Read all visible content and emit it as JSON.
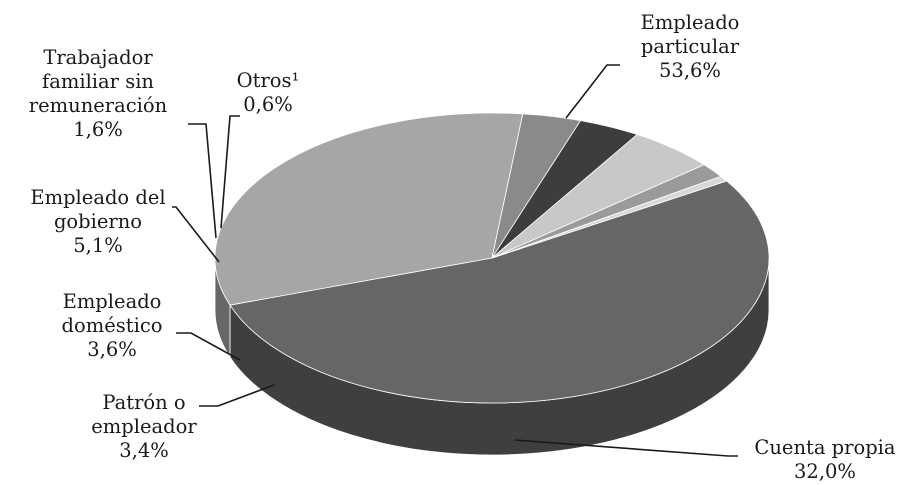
{
  "chart_data": {
    "type": "pie",
    "style": "3d",
    "unit": "%",
    "slices": [
      {
        "name": "Empleado particular",
        "value": 53.6,
        "label_lines": [
          "Empleado",
          "particular"
        ],
        "value_label": "53,6%",
        "color": "#666666"
      },
      {
        "name": "Cuenta propia",
        "value": 32.0,
        "label_lines": [
          "Cuenta propia"
        ],
        "value_label": "32,0%",
        "color": "#a6a6a6"
      },
      {
        "name": "Patrón o empleador",
        "value": 3.4,
        "label_lines": [
          "Patrón o",
          "empleador"
        ],
        "value_label": "3,4%",
        "color": "#8a8a8a"
      },
      {
        "name": "Empleado doméstico",
        "value": 3.6,
        "label_lines": [
          "Empleado",
          "doméstico"
        ],
        "value_label": "3,6%",
        "color": "#3d3d3d"
      },
      {
        "name": "Empleado del gobierno",
        "value": 5.1,
        "label_lines": [
          "Empleado del",
          "gobierno"
        ],
        "value_label": "5,1%",
        "color": "#c8c8c8"
      },
      {
        "name": "Trabajador familiar sin remuneración",
        "value": 1.6,
        "label_lines": [
          "Trabajador",
          "familiar sin",
          "remuneración"
        ],
        "value_label": "1,6%",
        "color": "#9a9a9a"
      },
      {
        "name": "Otros",
        "value": 0.6,
        "label_lines": [
          "Otros¹"
        ],
        "value_label": "0,6%",
        "color": "#d8d8d8"
      }
    ]
  }
}
